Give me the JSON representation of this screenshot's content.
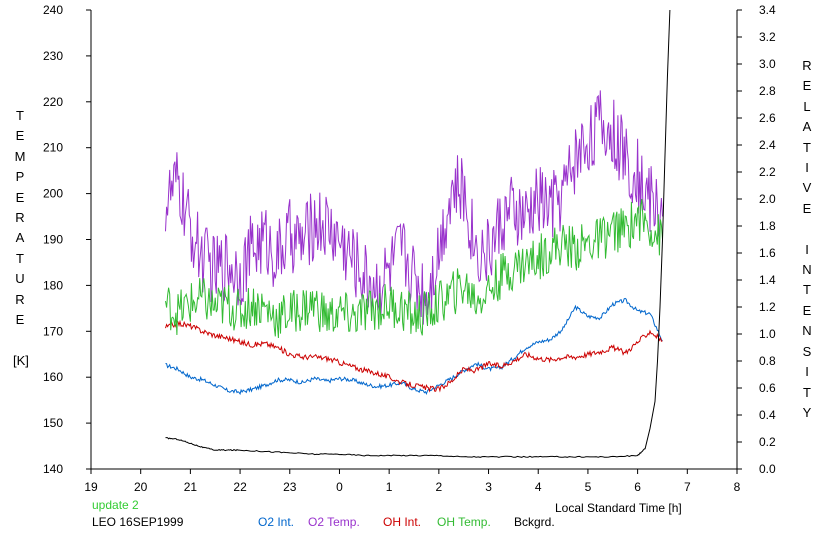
{
  "chart_data": {
    "type": "line",
    "left_axis_label": [
      "T",
      "E",
      "M",
      "P",
      "E",
      "R",
      "A",
      "T",
      "U",
      "R",
      "E",
      "",
      "[K]"
    ],
    "right_axis_label": [
      "R",
      "E",
      "L",
      "A",
      "T",
      "I",
      "V",
      "E",
      "",
      "I",
      "N",
      "T",
      "E",
      "N",
      "S",
      "I",
      "T",
      "Y"
    ],
    "xlabel": "Local Standard Time [h]",
    "x_ticks": [
      19,
      20,
      21,
      22,
      23,
      0,
      1,
      2,
      3,
      4,
      5,
      6,
      7,
      8
    ],
    "x_tick_labels": [
      "19",
      "20",
      "21",
      "22",
      "23",
      "0",
      "1",
      "2",
      "3",
      "4",
      "5",
      "6",
      "7",
      "8"
    ],
    "xlim": [
      19,
      32
    ],
    "y_left_ticks": [
      140,
      150,
      160,
      170,
      180,
      190,
      200,
      210,
      220,
      230,
      240
    ],
    "y_left_tick_labels": [
      "140",
      "150",
      "160",
      "170",
      "180",
      "190",
      "200",
      "210",
      "220",
      "230",
      "240"
    ],
    "ylim_left": [
      140,
      240
    ],
    "y_right_ticks": [
      0.0,
      0.2,
      0.4,
      0.6,
      0.8,
      1.0,
      1.2,
      1.4,
      1.6,
      1.8,
      2.0,
      2.2,
      2.4,
      2.6,
      2.8,
      3.0,
      3.2,
      3.4
    ],
    "y_right_tick_labels": [
      "0.0",
      "0.2",
      "0.4",
      "0.6",
      "0.8",
      "1.0",
      "1.2",
      "1.4",
      "1.6",
      "1.8",
      "2.0",
      "2.2",
      "2.4",
      "2.6",
      "2.8",
      "3.0",
      "3.2",
      "3.4"
    ],
    "ylim_right": [
      0,
      3.4
    ],
    "grid": false,
    "legend_placement": "bottom",
    "series": [
      {
        "name": "O2 Int.",
        "axis": "right",
        "color": "#0066cc",
        "x": [
          20.5,
          20.75,
          21.0,
          21.25,
          21.5,
          21.75,
          22.0,
          22.25,
          22.5,
          22.75,
          23.0,
          23.25,
          23.5,
          23.75,
          24.0,
          24.25,
          24.5,
          24.75,
          25.0,
          25.25,
          25.5,
          25.75,
          26.0,
          26.25,
          26.5,
          26.75,
          27.0,
          27.25,
          27.5,
          27.75,
          28.0,
          28.25,
          28.5,
          28.75,
          29.0,
          29.25,
          29.5,
          29.75,
          30.0,
          30.25,
          30.5
        ],
        "y": [
          0.77,
          0.74,
          0.68,
          0.66,
          0.62,
          0.58,
          0.57,
          0.59,
          0.62,
          0.66,
          0.66,
          0.64,
          0.67,
          0.65,
          0.67,
          0.66,
          0.63,
          0.61,
          0.62,
          0.64,
          0.59,
          0.57,
          0.62,
          0.67,
          0.73,
          0.78,
          0.74,
          0.75,
          0.82,
          0.9,
          0.94,
          0.96,
          1.04,
          1.2,
          1.13,
          1.12,
          1.22,
          1.25,
          1.17,
          1.15,
          0.95
        ]
      },
      {
        "name": "O2 Temp.",
        "axis": "left",
        "color": "#9933cc",
        "x": [
          20.5,
          20.75,
          21.0,
          21.25,
          21.5,
          21.75,
          22.0,
          22.25,
          22.5,
          22.75,
          23.0,
          23.25,
          23.5,
          23.75,
          24.0,
          24.25,
          24.5,
          24.75,
          25.0,
          25.25,
          25.5,
          25.75,
          26.0,
          26.25,
          26.5,
          26.75,
          27.0,
          27.25,
          27.5,
          27.75,
          28.0,
          28.25,
          28.5,
          28.75,
          29.0,
          29.25,
          29.5,
          29.75,
          30.0,
          30.25,
          30.5
        ],
        "y": [
          198,
          202,
          192,
          186,
          183,
          185,
          183,
          188,
          190,
          186,
          191,
          189,
          194,
          193,
          190,
          186,
          182,
          180,
          183,
          188,
          182,
          178,
          188,
          201,
          200,
          188,
          187,
          194,
          196,
          194,
          199,
          197,
          200,
          208,
          212,
          215,
          213,
          208,
          204,
          199,
          195
        ]
      },
      {
        "name": "OH Int.",
        "axis": "right",
        "color": "#cc0000",
        "x": [
          20.5,
          20.75,
          21.0,
          21.25,
          21.5,
          21.75,
          22.0,
          22.25,
          22.5,
          22.75,
          23.0,
          23.25,
          23.5,
          23.75,
          24.0,
          24.25,
          24.5,
          24.75,
          25.0,
          25.25,
          25.5,
          25.75,
          26.0,
          26.25,
          26.5,
          26.75,
          27.0,
          27.25,
          27.5,
          27.75,
          28.0,
          28.25,
          28.5,
          28.75,
          29.0,
          29.25,
          29.5,
          29.75,
          30.0,
          30.25,
          30.5
        ],
        "y": [
          1.05,
          1.08,
          1.06,
          1.02,
          0.99,
          0.97,
          0.94,
          0.92,
          0.93,
          0.9,
          0.85,
          0.83,
          0.83,
          0.82,
          0.79,
          0.76,
          0.73,
          0.71,
          0.68,
          0.64,
          0.62,
          0.6,
          0.59,
          0.65,
          0.74,
          0.73,
          0.78,
          0.76,
          0.8,
          0.85,
          0.82,
          0.81,
          0.83,
          0.83,
          0.85,
          0.87,
          0.9,
          0.86,
          0.94,
          1.02,
          0.95
        ]
      },
      {
        "name": "OH Temp.",
        "axis": "left",
        "color": "#33bb33",
        "x": [
          20.5,
          20.75,
          21.0,
          21.25,
          21.5,
          21.75,
          22.0,
          22.25,
          22.5,
          22.75,
          23.0,
          23.25,
          23.5,
          23.75,
          24.0,
          24.25,
          24.5,
          24.75,
          25.0,
          25.25,
          25.5,
          25.75,
          26.0,
          26.25,
          26.5,
          26.75,
          27.0,
          27.25,
          27.5,
          27.75,
          28.0,
          28.25,
          28.5,
          28.75,
          29.0,
          29.25,
          29.5,
          29.75,
          30.0,
          30.25,
          30.5
        ],
        "y": [
          176,
          174,
          176,
          177,
          175,
          176,
          174,
          176,
          175,
          173,
          174,
          175,
          176,
          173,
          174,
          173,
          174,
          175,
          176,
          175,
          173,
          174,
          176,
          178,
          180,
          177,
          179,
          182,
          184,
          185,
          186,
          188,
          189,
          188,
          189,
          190,
          192,
          192,
          195,
          193,
          190
        ]
      },
      {
        "name": "Bckgrd.",
        "axis": "right",
        "color": "#000000",
        "x": [
          20.5,
          20.75,
          21.0,
          21.25,
          21.5,
          21.75,
          22.0,
          22.5,
          23.0,
          23.5,
          24.0,
          24.5,
          25.0,
          25.5,
          26.0,
          26.5,
          27.0,
          27.5,
          28.0,
          28.5,
          29.0,
          29.5,
          30.0,
          30.15,
          30.25,
          30.35,
          30.4,
          30.45,
          30.5,
          30.55,
          30.6,
          30.65
        ],
        "y": [
          0.23,
          0.22,
          0.19,
          0.16,
          0.14,
          0.14,
          0.14,
          0.13,
          0.12,
          0.11,
          0.11,
          0.1,
          0.1,
          0.1,
          0.1,
          0.09,
          0.09,
          0.09,
          0.09,
          0.09,
          0.09,
          0.09,
          0.1,
          0.15,
          0.3,
          0.5,
          0.8,
          1.2,
          1.7,
          2.3,
          2.9,
          3.4
        ]
      }
    ]
  },
  "footer": {
    "update_text": "update 2",
    "station_date": "LEO 16SEP1999"
  }
}
